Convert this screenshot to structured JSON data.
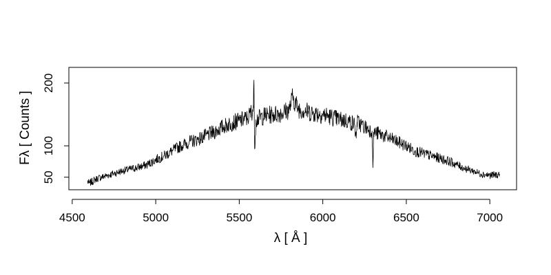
{
  "chart_data": {
    "type": "line",
    "title": "",
    "xlabel": "λ [ Å ]",
    "ylabel": "Fλ [ Counts ]",
    "xlim": [
      4480,
      7160
    ],
    "ylim": [
      30,
      225
    ],
    "x_ticks": [
      4500,
      5000,
      5500,
      6000,
      6500,
      7000
    ],
    "x_tick_labels": [
      "4500",
      "5000",
      "5500",
      "6000",
      "6500",
      "7000"
    ],
    "y_ticks": [
      50,
      100,
      200
    ],
    "y_tick_labels": [
      "50",
      "100",
      "200"
    ],
    "grid": false,
    "legend": "none",
    "line_color": "#000000",
    "series": [
      {
        "x": [
          4590,
          4600,
          4650,
          4700,
          4750,
          4800,
          4850,
          4900,
          4950,
          5000,
          5050,
          5100,
          5150,
          5200,
          5250,
          5300,
          5350,
          5400,
          5450,
          5500,
          5550,
          5585,
          5588,
          5592,
          5600,
          5650,
          5700,
          5750,
          5800,
          5820,
          5850,
          5900,
          5950,
          6000,
          6050,
          6100,
          6150,
          6190,
          6200,
          6205,
          6250,
          6295,
          6300,
          6305,
          6350,
          6400,
          6450,
          6500,
          6550,
          6600,
          6650,
          6700,
          6750,
          6800,
          6850,
          6900,
          6950,
          7000,
          7050,
          7060
        ],
        "y": [
          44,
          40,
          48,
          52,
          56,
          60,
          63,
          66,
          70,
          78,
          84,
          92,
          100,
          106,
          110,
          116,
          122,
          130,
          136,
          140,
          144,
          160,
          205,
          95,
          142,
          148,
          150,
          152,
          158,
          178,
          160,
          155,
          152,
          150,
          146,
          142,
          140,
          134,
          112,
          138,
          130,
          124,
          65,
          122,
          118,
          112,
          106,
          100,
          92,
          88,
          84,
          80,
          76,
          70,
          64,
          60,
          55,
          53,
          54,
          55
        ]
      }
    ]
  }
}
